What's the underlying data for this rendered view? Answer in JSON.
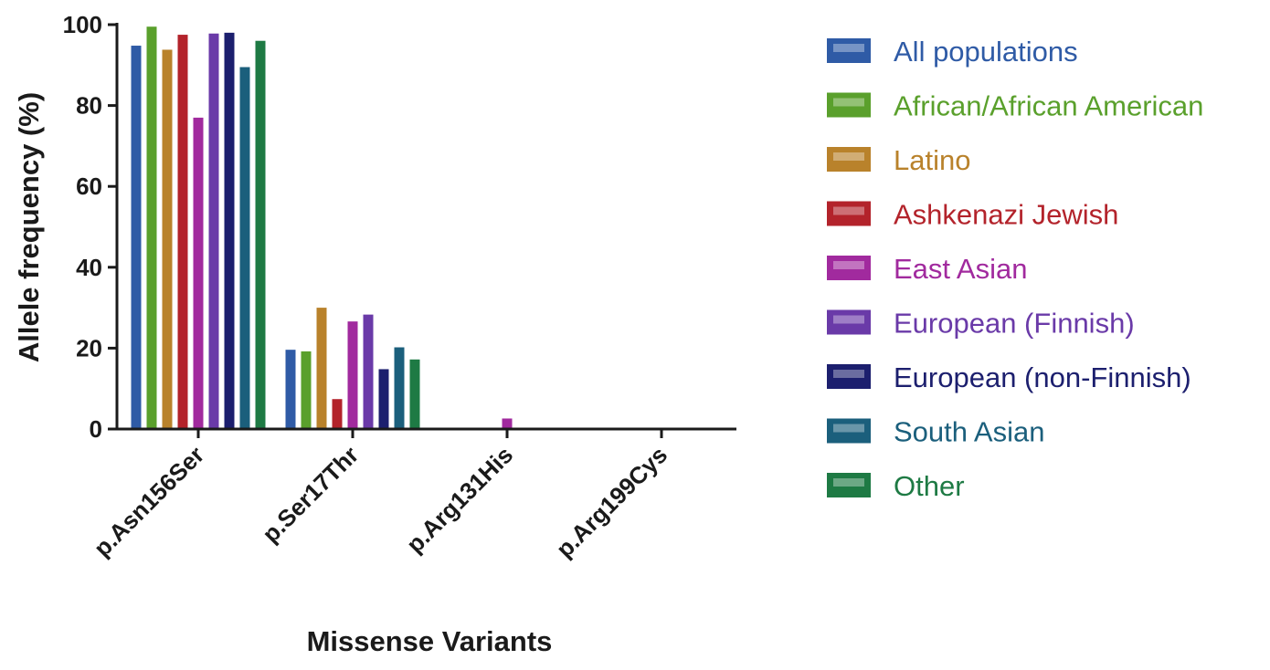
{
  "chart_data": {
    "type": "bar",
    "title": "",
    "xlabel": "Missense Variants",
    "ylabel": "Allele frequency (%)",
    "ylim": [
      0,
      100
    ],
    "yticks": [
      0,
      20,
      40,
      60,
      80,
      100
    ],
    "categories": [
      "p.Asn156Ser",
      "p.Ser17Thr",
      "p.Arg131His",
      "p.Arg199Cys"
    ],
    "legend_position": "right",
    "series": [
      {
        "name": "All populations",
        "color": "#2f5ba6",
        "values": [
          94.8,
          19.6,
          0,
          0
        ]
      },
      {
        "name": "African/African American",
        "color": "#5aa02c",
        "values": [
          99.5,
          19.2,
          0,
          0
        ]
      },
      {
        "name": "Latino",
        "color": "#b9822b",
        "values": [
          93.8,
          30.0,
          0,
          0
        ]
      },
      {
        "name": "Ashkenazi Jewish",
        "color": "#b3232b",
        "values": [
          97.5,
          7.4,
          0,
          0
        ]
      },
      {
        "name": "East Asian",
        "color": "#a12a9e",
        "values": [
          77.0,
          26.6,
          2.6,
          0
        ]
      },
      {
        "name": "European (Finnish)",
        "color": "#6a3aa8",
        "values": [
          97.8,
          28.3,
          0,
          0
        ]
      },
      {
        "name": "European (non-Finnish)",
        "color": "#1c1f6e",
        "values": [
          98.0,
          14.8,
          0,
          0
        ]
      },
      {
        "name": "South Asian",
        "color": "#1b5f7c",
        "values": [
          89.5,
          20.2,
          0,
          0
        ]
      },
      {
        "name": "Other",
        "color": "#1e7a44",
        "values": [
          96.0,
          17.2,
          0,
          0
        ]
      }
    ]
  }
}
